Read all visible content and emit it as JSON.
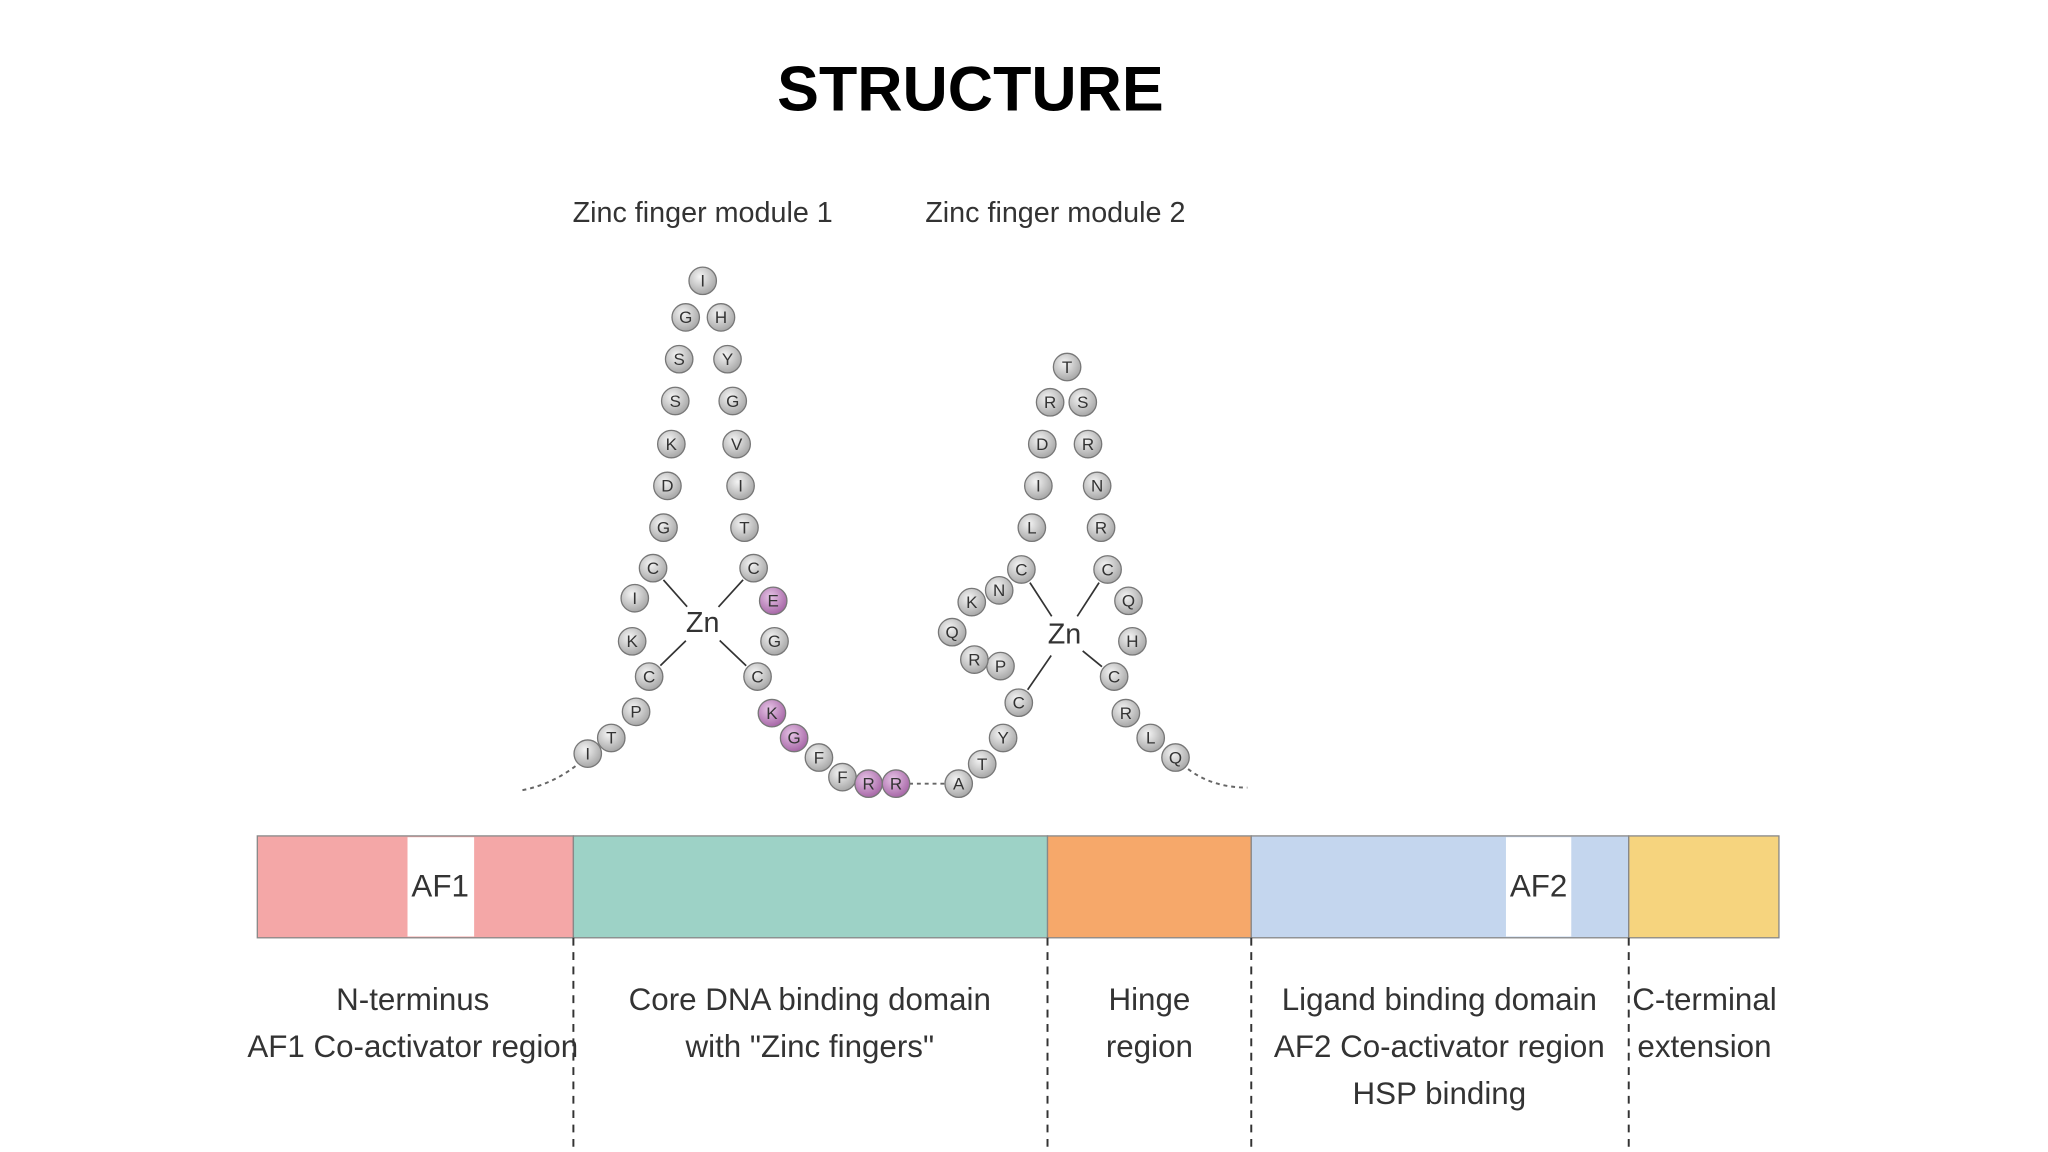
{
  "title": "STRUCTURE",
  "modules": [
    {
      "label": "Zinc finger module 1",
      "ion": "Zn"
    },
    {
      "label": "Zinc finger module 2",
      "ion": "Zn"
    }
  ],
  "residues": [
    "I",
    "T",
    "P",
    "C",
    "K",
    "I",
    "C",
    "G",
    "D",
    "K",
    "S",
    "S",
    "G",
    "I",
    "H",
    "Y",
    "G",
    "V",
    "I",
    "T",
    "C",
    "E",
    "G",
    "C",
    "K",
    "G",
    "F",
    "F",
    "R",
    "R",
    "A",
    "T",
    "Y",
    "C",
    "P",
    "R",
    "Q",
    "K",
    "N",
    "C",
    "L",
    "I",
    "D",
    "R",
    "T",
    "S",
    "R",
    "N",
    "R",
    "C",
    "Q",
    "H",
    "C",
    "R",
    "L",
    "Q"
  ],
  "bar": {
    "af1": "AF1",
    "af2": "AF2"
  },
  "regions": [
    {
      "lines": [
        "N-terminus",
        "AF1 Co-activator region"
      ]
    },
    {
      "lines": [
        "Core DNA binding domain",
        "with \"Zinc fingers\""
      ]
    },
    {
      "lines": [
        "Hinge",
        "region"
      ]
    },
    {
      "lines": [
        "Ligand binding domain",
        "AF2 Co-activator region",
        "HSP binding"
      ]
    },
    {
      "lines": [
        "C-terminal",
        "extension"
      ]
    }
  ]
}
